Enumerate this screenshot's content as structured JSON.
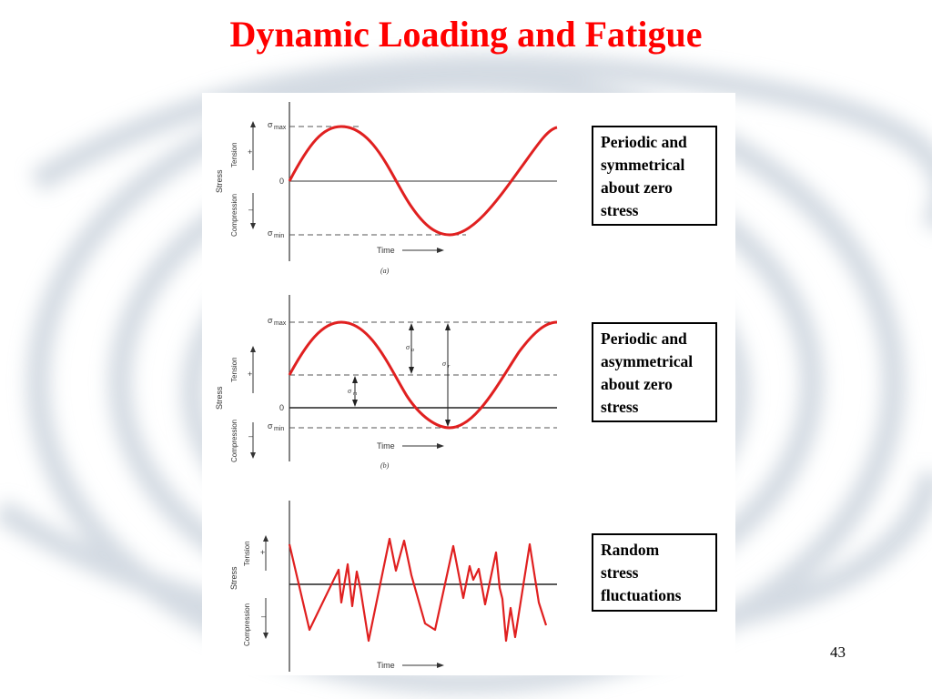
{
  "slide": {
    "title": "Dynamic Loading and Fatigue",
    "page_number": "43"
  },
  "panel_a": {
    "description": "Periodic and\nsymmetrical\nabout zero\nstress",
    "caption": "(a)",
    "sigma_max": "max",
    "sigma_min": "min",
    "zero": "0",
    "time": "Time",
    "stress": "Stress",
    "tension": "Tension",
    "compression": "Compression",
    "plus": "+",
    "minus": "–"
  },
  "panel_b": {
    "description": "Periodic and\nasymmetrical\nabout zero\nstress",
    "caption": "(b)",
    "sigma_max": "max",
    "sigma_min": "min",
    "sigma_a": "a",
    "sigma_m": "m",
    "sigma_r": "r",
    "zero": "0",
    "time": "Time",
    "stress": "Stress",
    "tension": "Tension",
    "compression": "Compression",
    "plus": "+",
    "minus": "–"
  },
  "panel_c": {
    "description": "Random\nstress\nfluctuations",
    "time": "Time",
    "stress": "Stress",
    "tension": "Tension",
    "compression": "Compression",
    "plus": "+",
    "minus": "–"
  },
  "colors": {
    "title": "#ff0000",
    "curve": "#e02020",
    "text": "#000000"
  }
}
